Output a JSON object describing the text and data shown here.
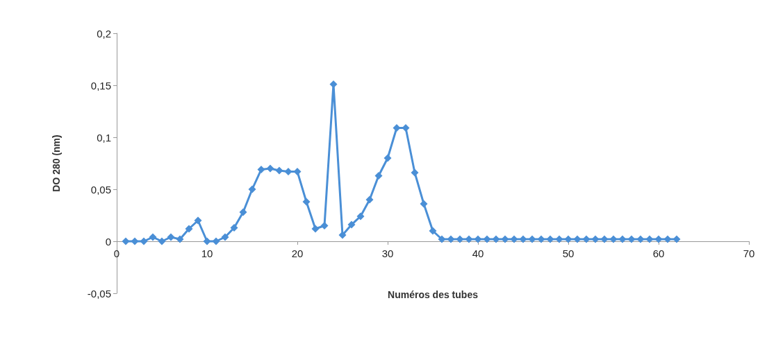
{
  "chart_data": {
    "type": "line",
    "xlabel": "Numéros des tubes",
    "ylabel": "DO 280 (nm)",
    "marker": "diamond",
    "x": [
      1,
      2,
      3,
      4,
      5,
      6,
      7,
      8,
      9,
      10,
      11,
      12,
      13,
      14,
      15,
      16,
      17,
      18,
      19,
      20,
      21,
      22,
      23,
      24,
      25,
      26,
      27,
      28,
      29,
      30,
      31,
      32,
      33,
      34,
      35,
      36,
      37,
      38,
      39,
      40,
      41,
      42,
      43,
      44,
      45,
      46,
      47,
      48,
      49,
      50,
      51,
      52,
      53,
      54,
      55,
      56,
      57,
      58,
      59,
      60,
      61,
      62
    ],
    "series": [
      {
        "color": "#4a8fd6",
        "values": [
          0,
          0,
          0,
          0.004,
          0,
          0.004,
          0.002,
          0.012,
          0.02,
          0,
          0,
          0.004,
          0.013,
          0.028,
          0.05,
          0.069,
          0.07,
          0.068,
          0.067,
          0.067,
          0.038,
          0.012,
          0.015,
          0.151,
          0.006,
          0.016,
          0.024,
          0.04,
          0.063,
          0.08,
          0.109,
          0.109,
          0.066,
          0.036,
          0.01,
          0.002,
          0.002,
          0.002,
          0.002,
          0.002,
          0.002,
          0.002,
          0.002,
          0.002,
          0.002,
          0.002,
          0.002,
          0.002,
          0.002,
          0.002,
          0.002,
          0.002,
          0.002,
          0.002,
          0.002,
          0.002,
          0.002,
          0.002,
          0.002,
          0.002,
          0.002,
          0.002
        ]
      }
    ],
    "xlim": [
      0,
      70
    ],
    "xticks": [
      0,
      10,
      20,
      30,
      40,
      50,
      60,
      70
    ],
    "ylim": [
      -0.05,
      0.2
    ],
    "yticks": [
      {
        "value": -0.05,
        "label": "-0,05"
      },
      {
        "value": 0,
        "label": "0"
      },
      {
        "value": 0.05,
        "label": "0,05"
      },
      {
        "value": 0.1,
        "label": "0,1"
      },
      {
        "value": 0.15,
        "label": "0,15"
      },
      {
        "value": 0.2,
        "label": "0,2"
      }
    ]
  }
}
